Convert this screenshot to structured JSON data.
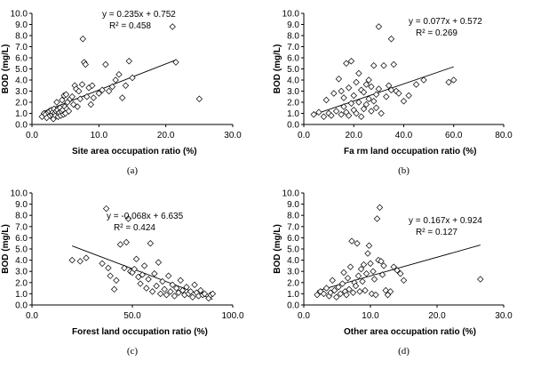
{
  "chart_data": [
    {
      "type": "scatter",
      "panel_label": "(a)",
      "xlabel": "Site area occupation ratio (%)",
      "ylabel": "BOD (mg/L)",
      "xlim": [
        0,
        30
      ],
      "ylim": [
        0,
        10
      ],
      "xticks": [
        "0.0",
        "10.0",
        "20.0",
        "30.0"
      ],
      "yticks": [
        "0.0",
        "1.0",
        "2.0",
        "3.0",
        "4.0",
        "5.0",
        "6.0",
        "7.0",
        "8.0",
        "9.0",
        "10.0"
      ],
      "equation": "y = 0.235x + 0.752",
      "r2": "R² = 0.458",
      "trendline": {
        "slope": 0.235,
        "intercept": 0.752,
        "x_range": [
          1.5,
          21.5
        ]
      },
      "points": [
        [
          1.5,
          0.7
        ],
        [
          1.8,
          1.0
        ],
        [
          2.0,
          0.9
        ],
        [
          2.2,
          0.6
        ],
        [
          2.4,
          1.1
        ],
        [
          2.6,
          1.2
        ],
        [
          2.7,
          0.8
        ],
        [
          2.9,
          1.3
        ],
        [
          3.0,
          0.9
        ],
        [
          3.1,
          1.1
        ],
        [
          3.2,
          0.5
        ],
        [
          3.3,
          1.4
        ],
        [
          3.4,
          1.0
        ],
        [
          3.5,
          0.8
        ],
        [
          3.6,
          1.2
        ],
        [
          3.7,
          2.0
        ],
        [
          3.8,
          1.3
        ],
        [
          3.9,
          0.7
        ],
        [
          4.0,
          1.0
        ],
        [
          4.1,
          1.1
        ],
        [
          4.2,
          1.5
        ],
        [
          4.3,
          0.8
        ],
        [
          4.4,
          1.2
        ],
        [
          4.5,
          2.2
        ],
        [
          4.6,
          1.3
        ],
        [
          4.7,
          0.9
        ],
        [
          4.8,
          2.6
        ],
        [
          4.9,
          1.6
        ],
        [
          5.0,
          1.0
        ],
        [
          5.1,
          2.7
        ],
        [
          5.2,
          1.4
        ],
        [
          5.3,
          2.0
        ],
        [
          5.5,
          1.2
        ],
        [
          5.7,
          2.3
        ],
        [
          6.0,
          2.5
        ],
        [
          6.2,
          1.8
        ],
        [
          6.4,
          3.5
        ],
        [
          6.6,
          3.2
        ],
        [
          6.8,
          1.6
        ],
        [
          7.0,
          3.0
        ],
        [
          7.2,
          2.3
        ],
        [
          7.5,
          3.6
        ],
        [
          7.6,
          7.7
        ],
        [
          7.8,
          5.6
        ],
        [
          8.0,
          5.4
        ],
        [
          8.2,
          2.5
        ],
        [
          8.5,
          3.3
        ],
        [
          8.8,
          1.8
        ],
        [
          9.0,
          3.5
        ],
        [
          9.2,
          2.4
        ],
        [
          10.0,
          2.8
        ],
        [
          10.5,
          3.1
        ],
        [
          11.0,
          5.4
        ],
        [
          11.5,
          3.0
        ],
        [
          12.0,
          3.4
        ],
        [
          12.5,
          4.0
        ],
        [
          13.0,
          4.5
        ],
        [
          13.5,
          2.4
        ],
        [
          14.0,
          3.5
        ],
        [
          14.5,
          5.7
        ],
        [
          15.0,
          4.2
        ],
        [
          21.0,
          8.8
        ],
        [
          21.5,
          5.6
        ],
        [
          25.0,
          2.3
        ]
      ]
    },
    {
      "type": "scatter",
      "panel_label": "(b)",
      "xlabel": "Fa rm land occupation ratio (%)",
      "ylabel": "BOD (mg/L)",
      "xlim": [
        0,
        80
      ],
      "ylim": [
        0,
        10
      ],
      "xticks": [
        "0.0",
        "20.0",
        "40.0",
        "60.0",
        "80.0"
      ],
      "yticks": [
        "0.0",
        "1.0",
        "2.0",
        "3.0",
        "4.0",
        "5.0",
        "6.0",
        "7.0",
        "8.0",
        "9.0",
        "10.0"
      ],
      "equation": "y = 0.077x + 0.572",
      "r2": "R² = 0.269",
      "trendline": {
        "slope": 0.077,
        "intercept": 0.572,
        "x_range": [
          4,
          60
        ]
      },
      "points": [
        [
          4,
          0.9
        ],
        [
          6,
          1.1
        ],
        [
          8,
          0.7
        ],
        [
          9,
          2.2
        ],
        [
          10,
          1.0
        ],
        [
          11,
          0.8
        ],
        [
          12,
          2.8
        ],
        [
          13,
          1.2
        ],
        [
          14,
          4.1
        ],
        [
          15,
          0.9
        ],
        [
          15,
          3.0
        ],
        [
          16,
          1.6
        ],
        [
          16,
          2.4
        ],
        [
          17,
          1.1
        ],
        [
          17,
          5.5
        ],
        [
          18,
          0.8
        ],
        [
          18,
          3.3
        ],
        [
          19,
          1.9
        ],
        [
          19,
          5.7
        ],
        [
          20,
          1.3
        ],
        [
          20,
          2.6
        ],
        [
          21,
          3.8
        ],
        [
          21,
          1.0
        ],
        [
          22,
          2.0
        ],
        [
          22,
          4.6
        ],
        [
          23,
          0.7
        ],
        [
          23,
          3.1
        ],
        [
          24,
          1.4
        ],
        [
          24,
          2.9
        ],
        [
          25,
          3.6
        ],
        [
          25,
          1.8
        ],
        [
          26,
          2.3
        ],
        [
          26,
          4.0
        ],
        [
          27,
          1.2
        ],
        [
          27,
          3.4
        ],
        [
          28,
          5.3
        ],
        [
          28,
          2.1
        ],
        [
          29,
          1.5
        ],
        [
          29,
          2.7
        ],
        [
          30,
          8.8
        ],
        [
          30,
          3.2
        ],
        [
          31,
          1.0
        ],
        [
          32,
          5.3
        ],
        [
          33,
          2.5
        ],
        [
          34,
          3.5
        ],
        [
          35,
          7.7
        ],
        [
          35,
          3.1
        ],
        [
          36,
          5.4
        ],
        [
          37,
          3.0
        ],
        [
          38,
          2.8
        ],
        [
          40,
          2.1
        ],
        [
          42,
          2.6
        ],
        [
          45,
          3.6
        ],
        [
          48,
          4.0
        ],
        [
          58,
          3.8
        ],
        [
          60,
          4.0
        ]
      ]
    },
    {
      "type": "scatter",
      "panel_label": "(c)",
      "xlabel": "Forest land occupation ratio (%)",
      "ylabel": "BOD (mg/L)",
      "xlim": [
        0,
        100
      ],
      "ylim": [
        0,
        10
      ],
      "xticks": [
        "0.0",
        "50.0",
        "100.0"
      ],
      "yticks": [
        "0.0",
        "1.0",
        "2.0",
        "3.0",
        "4.0",
        "5.0",
        "6.0",
        "7.0",
        "8.0",
        "9.0",
        "10.0"
      ],
      "equation": "y = -0.068x + 6.635",
      "r2": "R² = 0.424",
      "trendline": {
        "slope": -0.068,
        "intercept": 6.635,
        "x_range": [
          20,
          90
        ]
      },
      "points": [
        [
          20,
          4.0
        ],
        [
          24,
          3.9
        ],
        [
          27,
          4.2
        ],
        [
          35,
          3.7
        ],
        [
          37,
          8.6
        ],
        [
          38,
          3.3
        ],
        [
          39,
          2.6
        ],
        [
          41,
          1.4
        ],
        [
          42,
          2.2
        ],
        [
          44,
          5.4
        ],
        [
          46,
          3.3
        ],
        [
          47,
          5.6
        ],
        [
          48,
          7.7
        ],
        [
          49,
          3.0
        ],
        [
          50,
          2.9
        ],
        [
          51,
          3.2
        ],
        [
          52,
          4.1
        ],
        [
          53,
          2.5
        ],
        [
          54,
          1.9
        ],
        [
          55,
          2.7
        ],
        [
          56,
          3.5
        ],
        [
          57,
          1.5
        ],
        [
          58,
          2.3
        ],
        [
          59,
          5.5
        ],
        [
          60,
          1.2
        ],
        [
          61,
          2.8
        ],
        [
          62,
          1.7
        ],
        [
          63,
          3.8
        ],
        [
          64,
          1.0
        ],
        [
          65,
          2.1
        ],
        [
          66,
          1.4
        ],
        [
          67,
          0.9
        ],
        [
          68,
          2.6
        ],
        [
          69,
          1.2
        ],
        [
          70,
          1.8
        ],
        [
          71,
          0.8
        ],
        [
          72,
          1.5
        ],
        [
          73,
          1.1
        ],
        [
          74,
          2.2
        ],
        [
          75,
          1.3
        ],
        [
          76,
          0.9
        ],
        [
          77,
          1.6
        ],
        [
          78,
          1.0
        ],
        [
          79,
          1.2
        ],
        [
          80,
          0.7
        ],
        [
          81,
          1.8
        ],
        [
          82,
          1.1
        ],
        [
          83,
          0.8
        ],
        [
          84,
          1.3
        ],
        [
          85,
          0.9
        ],
        [
          86,
          1.0
        ],
        [
          88,
          0.6
        ],
        [
          89,
          0.9
        ],
        [
          90,
          1.0
        ]
      ]
    },
    {
      "type": "scatter",
      "panel_label": "(d)",
      "xlabel": "Other area occupation ratio (%)",
      "ylabel": "BOD (mg/L)",
      "xlim": [
        0,
        30
      ],
      "ylim": [
        0,
        10
      ],
      "xticks": [
        "0.0",
        "10.0",
        "20.0",
        "30.0"
      ],
      "yticks": [
        "0.0",
        "1.0",
        "2.0",
        "3.0",
        "4.0",
        "5.0",
        "6.0",
        "7.0",
        "8.0",
        "9.0",
        "10.0"
      ],
      "equation": "y = 0.167x + 0.924",
      "r2": "R² = 0.127",
      "trendline": {
        "slope": 0.167,
        "intercept": 0.924,
        "x_range": [
          2,
          26.5
        ]
      },
      "points": [
        [
          2.0,
          0.9
        ],
        [
          2.5,
          1.2
        ],
        [
          3.0,
          1.0
        ],
        [
          3.4,
          1.5
        ],
        [
          3.8,
          0.8
        ],
        [
          4.0,
          1.1
        ],
        [
          4.3,
          2.2
        ],
        [
          4.6,
          1.3
        ],
        [
          4.9,
          0.7
        ],
        [
          5.2,
          1.6
        ],
        [
          5.5,
          1.0
        ],
        [
          5.8,
          1.9
        ],
        [
          6.0,
          2.9
        ],
        [
          6.2,
          1.2
        ],
        [
          6.4,
          0.9
        ],
        [
          6.6,
          2.4
        ],
        [
          6.8,
          1.4
        ],
        [
          7.0,
          3.4
        ],
        [
          7.2,
          5.7
        ],
        [
          7.4,
          1.1
        ],
        [
          7.6,
          2.0
        ],
        [
          7.8,
          1.7
        ],
        [
          8.0,
          5.5
        ],
        [
          8.2,
          2.6
        ],
        [
          8.4,
          1.2
        ],
        [
          8.6,
          3.2
        ],
        [
          8.8,
          2.1
        ],
        [
          9.0,
          3.6
        ],
        [
          9.2,
          1.3
        ],
        [
          9.4,
          2.8
        ],
        [
          9.6,
          4.6
        ],
        [
          9.8,
          5.3
        ],
        [
          10.0,
          3.7
        ],
        [
          10.2,
          1.0
        ],
        [
          10.4,
          3.0
        ],
        [
          10.6,
          2.3
        ],
        [
          10.8,
          0.9
        ],
        [
          11.0,
          7.7
        ],
        [
          11.2,
          4.0
        ],
        [
          11.4,
          8.7
        ],
        [
          11.6,
          3.9
        ],
        [
          11.8,
          2.7
        ],
        [
          12.0,
          3.5
        ],
        [
          12.3,
          1.3
        ],
        [
          12.6,
          0.9
        ],
        [
          13.0,
          1.2
        ],
        [
          13.5,
          3.4
        ],
        [
          14.0,
          3.1
        ],
        [
          14.5,
          2.8
        ],
        [
          15.0,
          2.2
        ],
        [
          26.5,
          2.3
        ]
      ]
    }
  ]
}
